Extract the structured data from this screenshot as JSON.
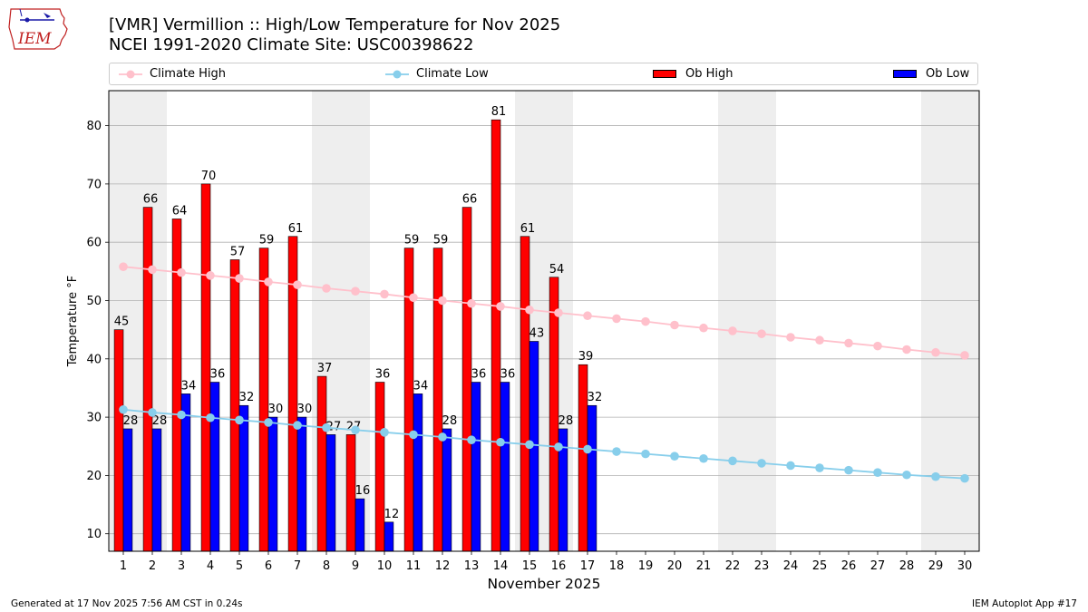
{
  "header": {
    "title": "[VMR] Vermillion :: High/Low Temperature for Nov 2025",
    "subtitle": "NCEI 1991-2020 Climate Site: USC00398622",
    "logo_text": "IEM"
  },
  "legend": {
    "climate_high": "Climate High",
    "climate_low": "Climate Low",
    "ob_high": "Ob High",
    "ob_low": "Ob Low"
  },
  "colors": {
    "climate_high": "#ffc0cb",
    "climate_low": "#87ceeb",
    "ob_high": "#ff0000",
    "ob_low": "#0000ff",
    "weekend_band": "#eeeeee",
    "grid": "#b0b0b0"
  },
  "chart_data": {
    "type": "bar",
    "title": "[VMR] Vermillion :: High/Low Temperature for Nov 2025",
    "xlabel": "November 2025",
    "ylabel": "Temperature °F",
    "ylim": [
      7,
      86
    ],
    "xlim": [
      0.5,
      30.5
    ],
    "yticks": [
      10,
      20,
      30,
      40,
      50,
      60,
      70,
      80
    ],
    "days": [
      1,
      2,
      3,
      4,
      5,
      6,
      7,
      8,
      9,
      10,
      11,
      12,
      13,
      14,
      15,
      16,
      17,
      18,
      19,
      20,
      21,
      22,
      23,
      24,
      25,
      26,
      27,
      28,
      29,
      30
    ],
    "weekend_bands": [
      [
        0.5,
        2.5
      ],
      [
        7.5,
        9.5
      ],
      [
        14.5,
        16.5
      ],
      [
        21.5,
        23.5
      ],
      [
        28.5,
        30.5
      ]
    ],
    "grid": true,
    "legend_position": "top",
    "series": [
      {
        "name": "Ob High",
        "kind": "bar",
        "values": [
          45,
          66,
          64,
          70,
          57,
          59,
          61,
          37,
          27,
          36,
          59,
          59,
          66,
          81,
          61,
          54,
          39
        ]
      },
      {
        "name": "Ob Low",
        "kind": "bar",
        "values": [
          28,
          28,
          34,
          36,
          32,
          30,
          30,
          27,
          16,
          12,
          34,
          28,
          36,
          36,
          43,
          28,
          32
        ]
      },
      {
        "name": "Climate High",
        "kind": "line",
        "values": [
          55.8,
          55.3,
          54.8,
          54.3,
          53.8,
          53.2,
          52.7,
          52.1,
          51.6,
          51.1,
          50.5,
          50.0,
          49.5,
          49.0,
          48.4,
          47.9,
          47.4,
          46.9,
          46.4,
          45.8,
          45.3,
          44.8,
          44.3,
          43.7,
          43.2,
          42.7,
          42.2,
          41.6,
          41.1,
          40.6
        ]
      },
      {
        "name": "Climate Low",
        "kind": "line",
        "values": [
          31.3,
          30.8,
          30.4,
          29.9,
          29.5,
          29.1,
          28.6,
          28.2,
          27.8,
          27.4,
          27.0,
          26.6,
          26.1,
          25.7,
          25.3,
          24.9,
          24.5,
          24.1,
          23.7,
          23.3,
          22.9,
          22.5,
          22.1,
          21.7,
          21.3,
          20.9,
          20.5,
          20.1,
          19.8,
          19.5
        ]
      }
    ]
  },
  "footer": {
    "generated": "Generated at 17 Nov 2025 7:56 AM CST in 0.24s",
    "app": "IEM Autoplot App #17"
  }
}
